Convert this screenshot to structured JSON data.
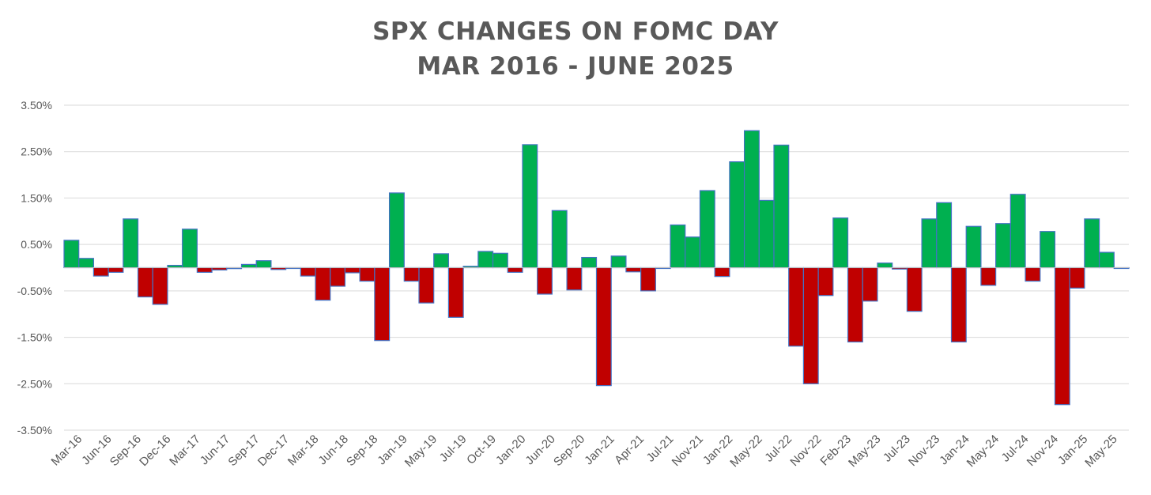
{
  "chart_data": {
    "type": "bar",
    "title": "SPX CHANGES ON FOMC DAY",
    "subtitle": "MAR 2016 - JUNE 2025",
    "xlabel": "",
    "ylabel": "",
    "ylim": [
      -3.5,
      3.5
    ],
    "yticks": [
      "3.50%",
      "2.50%",
      "1.50%",
      "0.50%",
      "-0.50%",
      "-1.50%",
      "-2.50%",
      "-3.50%"
    ],
    "ytick_values": [
      3.5,
      2.5,
      1.5,
      0.5,
      -0.5,
      -1.5,
      -2.5,
      -3.5
    ],
    "xtick_labels": [
      "Mar-16",
      "Jun-16",
      "Sep-16",
      "Dec-16",
      "Mar-17",
      "Jun-17",
      "Sep-17",
      "Dec-17",
      "Mar-18",
      "Jun-18",
      "Sep-18",
      "Jan-19",
      "May-19",
      "Jul-19",
      "Oct-19",
      "Jan-20",
      "Jun-20",
      "Sep-20",
      "Jan-21",
      "Apr-21",
      "Jul-21",
      "Nov-21",
      "Jan-22",
      "May-22",
      "Jul-22",
      "Nov-22",
      "Feb-23",
      "May-23",
      "Jul-23",
      "Nov-23",
      "Jan-24",
      "May-24",
      "Jul-24",
      "Nov-24",
      "Jan-25",
      "May-25"
    ],
    "xtick_every": 2,
    "positive_color": "#00B050",
    "negative_color": "#C00000",
    "border_color": "#4472C4",
    "values": [
      0.59,
      0.2,
      -0.18,
      -0.1,
      1.05,
      -0.63,
      -0.79,
      0.05,
      0.83,
      -0.1,
      -0.05,
      -0.02,
      0.07,
      0.15,
      -0.04,
      -0.01,
      -0.18,
      -0.7,
      -0.4,
      -0.11,
      -0.29,
      -1.57,
      1.61,
      -0.29,
      -0.76,
      0.3,
      -1.07,
      0.03,
      0.35,
      0.31,
      -0.1,
      2.65,
      -0.57,
      1.23,
      -0.48,
      0.22,
      -2.54,
      0.25,
      -0.09,
      -0.5,
      -0.01,
      0.92,
      0.66,
      1.66,
      -0.19,
      2.28,
      2.95,
      1.45,
      2.64,
      -1.69,
      -2.5,
      -0.6,
      1.07,
      -1.6,
      -0.72,
      0.1,
      -0.03,
      -0.94,
      1.05,
      1.4,
      -1.6,
      0.89,
      -0.38,
      0.95,
      1.58,
      -0.29,
      0.78,
      -2.95,
      -0.44,
      1.05,
      0.33,
      -0.01
    ]
  }
}
